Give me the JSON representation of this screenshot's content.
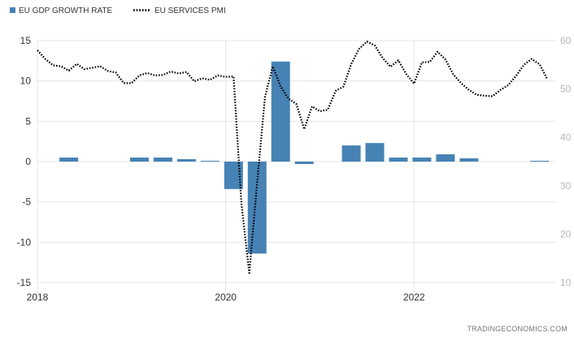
{
  "legend": {
    "gdp_label": "EU GDP GROWTH RATE",
    "pmi_label": "EU SERVICES PMI"
  },
  "watermark": "TRADINGECONOMICS.COM",
  "colors": {
    "bar": "#4682b4",
    "line": "#000000",
    "gridline": "#e6e6e6",
    "left_axis_text": "#333333",
    "right_axis_text": "#b8b8b8"
  },
  "chart_data": {
    "type": "bar",
    "title": "",
    "grid": true,
    "legend_position": "top-left",
    "x_ticks": [
      "2018",
      "2020",
      "2022"
    ],
    "xlim": [
      "2018-01",
      "2023-07"
    ],
    "left_axis": {
      "ylim": [
        -15,
        15
      ],
      "ticks": [
        -15,
        -10,
        -5,
        0,
        5,
        10,
        15
      ]
    },
    "right_axis": {
      "ylim": [
        10,
        60
      ],
      "ticks": [
        10,
        20,
        30,
        40,
        50,
        60
      ]
    },
    "series": [
      {
        "name": "EU GDP GROWTH RATE",
        "type": "bar",
        "axis": "left",
        "x": [
          "2018-Q2",
          "2018-Q3",
          "2018-Q4",
          "2019-Q1",
          "2019-Q2",
          "2019-Q3",
          "2019-Q4",
          "2020-Q1",
          "2020-Q2",
          "2020-Q3",
          "2020-Q4",
          "2021-Q1",
          "2021-Q2",
          "2021-Q3",
          "2021-Q4",
          "2022-Q1",
          "2022-Q2",
          "2022-Q3",
          "2022-Q4",
          "2023-Q1",
          "2023-Q2"
        ],
        "values": [
          0.5,
          0.0,
          0.0,
          0.5,
          0.5,
          0.3,
          0.1,
          -3.4,
          -11.4,
          12.4,
          -0.3,
          0.0,
          2.0,
          2.3,
          0.5,
          0.5,
          0.9,
          0.4,
          0.0,
          0.0,
          0.1
        ]
      },
      {
        "name": "EU SERVICES PMI",
        "type": "line",
        "axis": "right",
        "style": "dotted",
        "x": [
          "2018-01",
          "2018-02",
          "2018-03",
          "2018-04",
          "2018-05",
          "2018-06",
          "2018-07",
          "2018-08",
          "2018-09",
          "2018-10",
          "2018-11",
          "2018-12",
          "2019-01",
          "2019-02",
          "2019-03",
          "2019-04",
          "2019-05",
          "2019-06",
          "2019-07",
          "2019-08",
          "2019-09",
          "2019-10",
          "2019-11",
          "2019-12",
          "2020-01",
          "2020-02",
          "2020-03",
          "2020-04",
          "2020-05",
          "2020-06",
          "2020-07",
          "2020-08",
          "2020-09",
          "2020-10",
          "2020-11",
          "2020-12",
          "2021-01",
          "2021-02",
          "2021-03",
          "2021-04",
          "2021-05",
          "2021-06",
          "2021-07",
          "2021-08",
          "2021-09",
          "2021-10",
          "2021-11",
          "2021-12",
          "2022-01",
          "2022-02",
          "2022-03",
          "2022-04",
          "2022-05",
          "2022-06",
          "2022-07",
          "2022-08",
          "2022-09",
          "2022-10",
          "2022-11",
          "2022-12",
          "2023-01",
          "2023-02",
          "2023-03",
          "2023-04",
          "2023-05",
          "2023-06"
        ],
        "values": [
          58.0,
          56.2,
          54.9,
          54.7,
          53.8,
          55.2,
          54.1,
          54.4,
          54.7,
          53.7,
          53.4,
          51.2,
          51.2,
          52.8,
          53.3,
          52.8,
          52.9,
          53.6,
          53.2,
          53.5,
          51.6,
          52.2,
          51.9,
          52.8,
          52.5,
          52.6,
          26.4,
          12.0,
          30.5,
          48.3,
          54.7,
          50.5,
          48.0,
          46.9,
          41.7,
          46.4,
          45.4,
          45.7,
          49.6,
          50.5,
          55.2,
          58.3,
          59.8,
          59.0,
          56.4,
          54.6,
          55.9,
          53.1,
          51.1,
          55.5,
          55.6,
          57.7,
          56.1,
          53.0,
          51.2,
          49.8,
          48.8,
          48.6,
          48.5,
          49.8,
          50.8,
          52.7,
          55.0,
          56.2,
          55.1,
          52.0
        ]
      }
    ]
  }
}
